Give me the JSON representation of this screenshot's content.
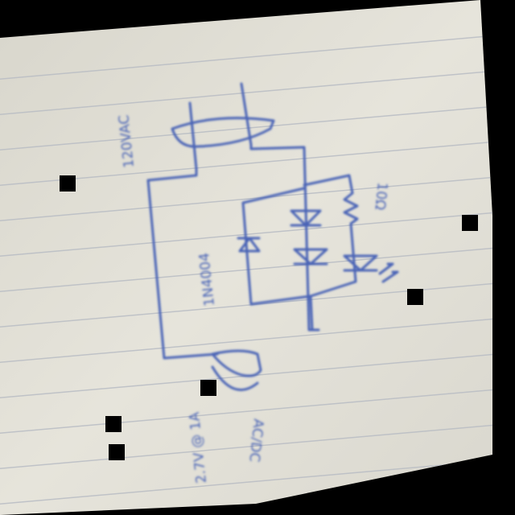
{
  "photo": {
    "subject": "",
    "colors": {
      "background": "#000000",
      "paper": "#e6e4db",
      "paper_shade": "#c9c7be",
      "rule_lines": "#b9bdc4",
      "ink": "#4863b6",
      "marker": "#000000"
    }
  },
  "schematic": {
    "labels": {
      "supply": "120VAC",
      "resistor": "10Ω",
      "blocking_diode": "1N4004",
      "output_voltage": "2.7V @ 1A",
      "output_type": "AC/DC"
    }
  },
  "markers": {
    "count": 6
  }
}
